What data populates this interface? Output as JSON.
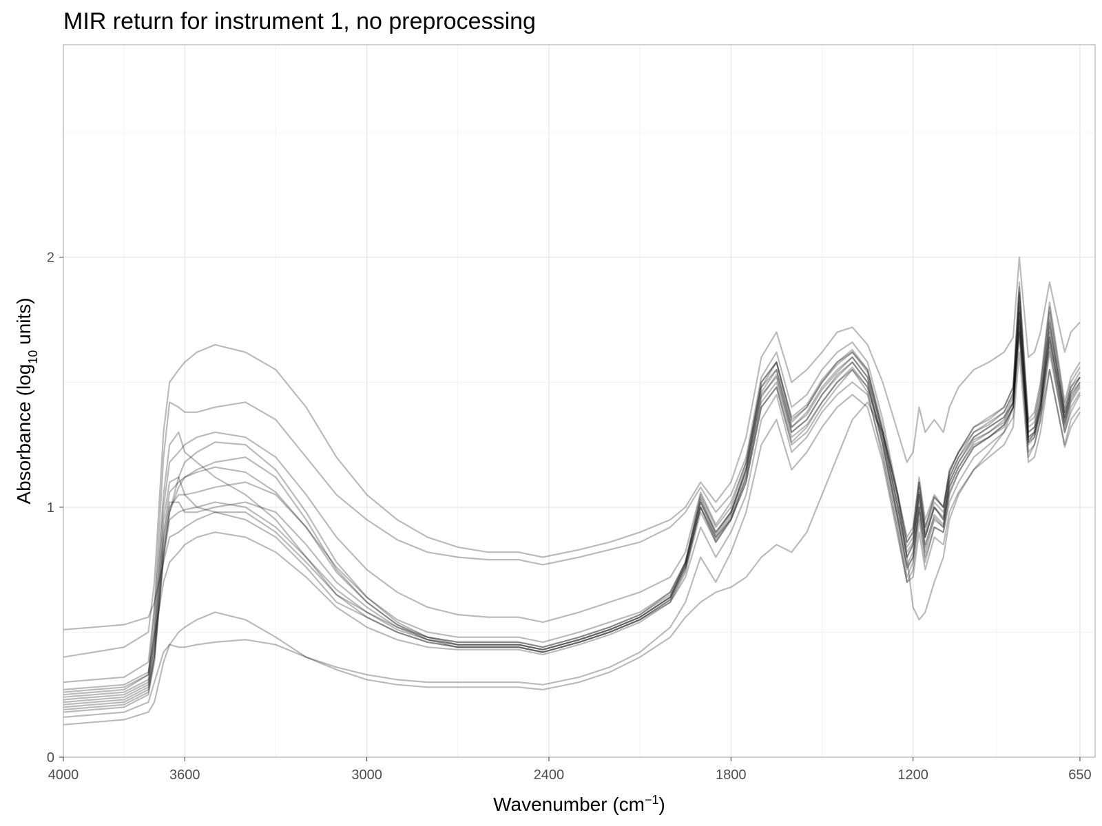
{
  "chart_data": {
    "type": "line",
    "title": "MIR return for instrument 1, no preprocessing",
    "xlabel": {
      "main": "Wavenumber (cm",
      "sup": "−1",
      "close": ")"
    },
    "ylabel": {
      "main": "Absorbance (log",
      "sub": "10",
      "close": " units)"
    },
    "x_reversed": true,
    "xlim": [
      4000,
      600
    ],
    "ylim": [
      0,
      2.85
    ],
    "x_ticks": [
      {
        "value": 4000,
        "label": "4000"
      },
      {
        "value": 3600,
        "label": "3600"
      },
      {
        "value": 3000,
        "label": "3000"
      },
      {
        "value": 2400,
        "label": "2400"
      },
      {
        "value": 1800,
        "label": "1800"
      },
      {
        "value": 1200,
        "label": "1200"
      },
      {
        "value": 650,
        "label": "650"
      }
    ],
    "y_ticks": [
      {
        "value": 0,
        "label": "0"
      },
      {
        "value": 1,
        "label": "1"
      },
      {
        "value": 2,
        "label": "2"
      }
    ],
    "grid": true,
    "line_color": "#000000",
    "line_opacity": 0.27,
    "x": [
      4000,
      3900,
      3800,
      3720,
      3700,
      3670,
      3650,
      3620,
      3600,
      3560,
      3500,
      3400,
      3300,
      3200,
      3100,
      3000,
      2900,
      2800,
      2700,
      2600,
      2500,
      2420,
      2300,
      2200,
      2100,
      2000,
      1950,
      1900,
      1850,
      1800,
      1750,
      1700,
      1650,
      1600,
      1550,
      1500,
      1450,
      1400,
      1350,
      1300,
      1250,
      1220,
      1200,
      1180,
      1160,
      1130,
      1100,
      1080,
      1050,
      1000,
      950,
      900,
      870,
      850,
      820,
      800,
      780,
      750,
      700,
      680,
      650
    ],
    "series": [
      {
        "values": [
          0.25,
          0.26,
          0.27,
          0.33,
          0.58,
          1.05,
          1.25,
          1.3,
          1.22,
          1.18,
          1.12,
          1.05,
          0.95,
          0.8,
          0.65,
          0.58,
          0.52,
          0.48,
          0.46,
          0.46,
          0.46,
          0.44,
          0.48,
          0.52,
          0.57,
          0.66,
          0.78,
          1.05,
          0.92,
          1.0,
          1.18,
          1.48,
          1.55,
          1.32,
          1.38,
          1.48,
          1.55,
          1.6,
          1.52,
          1.3,
          1.05,
          0.88,
          0.92,
          1.12,
          0.95,
          1.05,
          1.0,
          1.15,
          1.22,
          1.3,
          1.33,
          1.38,
          1.45,
          1.8,
          1.3,
          1.32,
          1.42,
          1.72,
          1.38,
          1.48,
          1.52
        ]
      },
      {
        "values": [
          0.24,
          0.25,
          0.26,
          0.31,
          0.5,
          0.95,
          1.1,
          1.12,
          1.05,
          1.0,
          0.98,
          0.95,
          0.88,
          0.76,
          0.62,
          0.56,
          0.5,
          0.46,
          0.44,
          0.44,
          0.44,
          0.42,
          0.46,
          0.5,
          0.55,
          0.63,
          0.75,
          1.0,
          0.88,
          0.95,
          1.12,
          1.42,
          1.5,
          1.28,
          1.33,
          1.42,
          1.5,
          1.56,
          1.48,
          1.28,
          0.98,
          0.8,
          0.85,
          1.05,
          0.88,
          1.0,
          0.95,
          1.1,
          1.18,
          1.27,
          1.3,
          1.35,
          1.42,
          1.75,
          1.28,
          1.3,
          1.4,
          1.68,
          1.35,
          1.45,
          1.5
        ]
      },
      {
        "values": [
          0.22,
          0.23,
          0.24,
          0.29,
          0.45,
          0.88,
          1.02,
          1.02,
          0.98,
          0.98,
          1.0,
          1.02,
          0.98,
          0.85,
          0.7,
          0.6,
          0.52,
          0.47,
          0.45,
          0.45,
          0.45,
          0.43,
          0.47,
          0.51,
          0.56,
          0.64,
          0.77,
          1.02,
          0.9,
          0.98,
          1.15,
          1.45,
          1.52,
          1.3,
          1.35,
          1.45,
          1.52,
          1.58,
          1.5,
          1.25,
          0.95,
          0.75,
          0.8,
          1.0,
          0.82,
          0.95,
          0.92,
          1.08,
          1.16,
          1.25,
          1.28,
          1.33,
          1.4,
          1.72,
          1.25,
          1.28,
          1.38,
          1.66,
          1.32,
          1.42,
          1.48
        ]
      },
      {
        "values": [
          0.2,
          0.21,
          0.22,
          0.27,
          0.4,
          0.82,
          0.98,
          1.08,
          1.12,
          1.15,
          1.18,
          1.2,
          1.12,
          0.95,
          0.75,
          0.62,
          0.53,
          0.47,
          0.44,
          0.44,
          0.44,
          0.42,
          0.46,
          0.5,
          0.55,
          0.63,
          0.76,
          1.0,
          0.86,
          0.95,
          1.1,
          1.4,
          1.48,
          1.25,
          1.3,
          1.4,
          1.48,
          1.55,
          1.46,
          1.2,
          0.9,
          0.7,
          0.75,
          0.95,
          0.78,
          0.92,
          0.9,
          1.05,
          1.14,
          1.24,
          1.28,
          1.33,
          1.4,
          1.78,
          1.26,
          1.3,
          1.4,
          1.7,
          1.34,
          1.44,
          1.5
        ]
      },
      {
        "values": [
          0.18,
          0.19,
          0.2,
          0.25,
          0.38,
          0.8,
          0.98,
          1.12,
          1.18,
          1.22,
          1.26,
          1.25,
          1.15,
          0.98,
          0.78,
          0.64,
          0.54,
          0.48,
          0.45,
          0.45,
          0.45,
          0.43,
          0.47,
          0.51,
          0.56,
          0.64,
          0.78,
          1.04,
          0.9,
          0.98,
          1.15,
          1.48,
          1.58,
          1.35,
          1.4,
          1.5,
          1.58,
          1.62,
          1.55,
          1.3,
          1.0,
          0.8,
          0.85,
          1.05,
          0.88,
          1.0,
          0.95,
          1.1,
          1.18,
          1.28,
          1.32,
          1.36,
          1.42,
          1.85,
          1.28,
          1.3,
          1.42,
          1.75,
          1.36,
          1.46,
          1.52
        ]
      },
      {
        "values": [
          0.3,
          0.31,
          0.32,
          0.38,
          0.6,
          1.2,
          1.42,
          1.4,
          1.38,
          1.38,
          1.4,
          1.42,
          1.35,
          1.2,
          1.05,
          0.95,
          0.87,
          0.82,
          0.8,
          0.79,
          0.79,
          0.77,
          0.8,
          0.83,
          0.86,
          0.92,
          0.98,
          1.08,
          0.98,
          1.05,
          1.2,
          1.52,
          1.62,
          1.4,
          1.45,
          1.55,
          1.62,
          1.66,
          1.58,
          1.35,
          1.05,
          0.86,
          0.9,
          1.1,
          0.92,
          1.04,
          1.0,
          1.14,
          1.22,
          1.32,
          1.35,
          1.4,
          1.48,
          1.9,
          1.35,
          1.38,
          1.5,
          1.82,
          1.42,
          1.52,
          1.58
        ]
      },
      {
        "values": [
          0.4,
          0.42,
          0.44,
          0.5,
          0.7,
          1.3,
          1.5,
          1.55,
          1.58,
          1.62,
          1.65,
          1.62,
          1.55,
          1.4,
          1.2,
          1.05,
          0.95,
          0.88,
          0.84,
          0.82,
          0.82,
          0.8,
          0.83,
          0.86,
          0.9,
          0.95,
          1.0,
          1.1,
          1.02,
          1.1,
          1.28,
          1.6,
          1.7,
          1.5,
          1.55,
          1.62,
          1.7,
          1.72,
          1.65,
          1.5,
          1.3,
          1.18,
          1.22,
          1.4,
          1.3,
          1.35,
          1.3,
          1.4,
          1.48,
          1.55,
          1.58,
          1.62,
          1.68,
          2.0,
          1.6,
          1.62,
          1.7,
          1.9,
          1.62,
          1.7,
          1.74
        ]
      },
      {
        "values": [
          0.51,
          0.52,
          0.53,
          0.56,
          0.62,
          0.78,
          0.88,
          0.9,
          0.92,
          0.95,
          0.98,
          0.98,
          0.9,
          0.78,
          0.65,
          0.56,
          0.5,
          0.46,
          0.44,
          0.44,
          0.44,
          0.42,
          0.46,
          0.5,
          0.55,
          0.62,
          0.72,
          0.92,
          0.8,
          0.9,
          1.05,
          1.35,
          1.45,
          1.22,
          1.28,
          1.38,
          1.45,
          1.5,
          1.45,
          1.22,
          0.92,
          0.72,
          0.78,
          0.98,
          0.8,
          0.92,
          0.9,
          1.02,
          1.1,
          1.2,
          1.25,
          1.3,
          1.36,
          1.7,
          1.22,
          1.25,
          1.35,
          1.62,
          1.3,
          1.38,
          1.45
        ]
      },
      {
        "values": [
          0.13,
          0.14,
          0.15,
          0.18,
          0.22,
          0.38,
          0.45,
          0.5,
          0.52,
          0.55,
          0.58,
          0.55,
          0.48,
          0.4,
          0.35,
          0.31,
          0.29,
          0.28,
          0.28,
          0.28,
          0.28,
          0.27,
          0.3,
          0.34,
          0.4,
          0.48,
          0.56,
          0.62,
          0.66,
          0.68,
          0.72,
          0.8,
          0.85,
          0.82,
          0.9,
          1.05,
          1.2,
          1.35,
          1.42,
          1.3,
          1.05,
          0.8,
          0.6,
          0.55,
          0.58,
          0.7,
          0.8,
          0.95,
          1.05,
          1.15,
          1.22,
          1.3,
          1.4,
          1.7,
          1.2,
          1.25,
          1.35,
          1.55,
          1.25,
          1.35,
          1.4
        ]
      },
      {
        "values": [
          0.16,
          0.17,
          0.18,
          0.22,
          0.3,
          0.42,
          0.45,
          0.44,
          0.44,
          0.45,
          0.46,
          0.47,
          0.45,
          0.4,
          0.36,
          0.33,
          0.31,
          0.3,
          0.3,
          0.3,
          0.3,
          0.29,
          0.32,
          0.36,
          0.42,
          0.52,
          0.62,
          0.8,
          0.7,
          0.82,
          0.98,
          1.25,
          1.35,
          1.15,
          1.22,
          1.32,
          1.4,
          1.45,
          1.4,
          1.18,
          0.88,
          0.7,
          0.72,
          0.9,
          0.75,
          0.88,
          0.85,
          0.98,
          1.06,
          1.15,
          1.2,
          1.25,
          1.32,
          1.62,
          1.18,
          1.2,
          1.3,
          1.55,
          1.24,
          1.32,
          1.38
        ]
      },
      {
        "values": [
          0.27,
          0.28,
          0.29,
          0.34,
          0.48,
          0.7,
          0.78,
          0.82,
          0.85,
          0.88,
          0.9,
          0.88,
          0.82,
          0.72,
          0.6,
          0.52,
          0.47,
          0.44,
          0.43,
          0.43,
          0.43,
          0.41,
          0.45,
          0.49,
          0.54,
          0.62,
          0.74,
          0.98,
          0.86,
          0.95,
          1.1,
          1.4,
          1.48,
          1.26,
          1.32,
          1.42,
          1.5,
          1.55,
          1.48,
          1.25,
          0.95,
          0.76,
          0.8,
          1.0,
          0.84,
          0.96,
          0.92,
          1.06,
          1.14,
          1.24,
          1.28,
          1.32,
          1.4,
          1.74,
          1.26,
          1.28,
          1.38,
          1.64,
          1.3,
          1.4,
          1.46
        ]
      },
      {
        "values": [
          0.21,
          0.22,
          0.23,
          0.28,
          0.42,
          0.85,
          1.0,
          1.05,
          1.05,
          1.06,
          1.08,
          1.1,
          1.05,
          0.92,
          0.76,
          0.64,
          0.55,
          0.5,
          0.48,
          0.48,
          0.48,
          0.46,
          0.5,
          0.54,
          0.58,
          0.66,
          0.78,
          1.02,
          0.88,
          0.97,
          1.14,
          1.46,
          1.55,
          1.32,
          1.37,
          1.47,
          1.54,
          1.6,
          1.52,
          1.28,
          1.0,
          0.82,
          0.86,
          1.06,
          0.88,
          1.0,
          0.96,
          1.12,
          1.2,
          1.28,
          1.32,
          1.36,
          1.44,
          1.82,
          1.3,
          1.32,
          1.44,
          1.74,
          1.36,
          1.46,
          1.52
        ]
      },
      {
        "values": [
          0.19,
          0.2,
          0.21,
          0.26,
          0.4,
          0.8,
          0.95,
          0.98,
          0.99,
          1.0,
          1.02,
          1.0,
          0.92,
          0.8,
          0.67,
          0.58,
          0.51,
          0.47,
          0.45,
          0.45,
          0.45,
          0.43,
          0.47,
          0.51,
          0.56,
          0.64,
          0.76,
          1.0,
          0.87,
          0.96,
          1.12,
          1.44,
          1.53,
          1.3,
          1.35,
          1.45,
          1.53,
          1.58,
          1.5,
          1.26,
          0.96,
          0.77,
          0.82,
          1.02,
          0.85,
          0.97,
          0.93,
          1.08,
          1.16,
          1.26,
          1.3,
          1.34,
          1.42,
          1.78,
          1.27,
          1.29,
          1.4,
          1.68,
          1.33,
          1.43,
          1.49
        ]
      },
      {
        "values": [
          0.23,
          0.24,
          0.25,
          0.3,
          0.46,
          0.9,
          1.06,
          1.1,
          1.12,
          1.14,
          1.16,
          1.14,
          1.06,
          0.92,
          0.74,
          0.62,
          0.53,
          0.48,
          0.46,
          0.46,
          0.46,
          0.44,
          0.48,
          0.52,
          0.57,
          0.65,
          0.77,
          1.03,
          0.89,
          0.98,
          1.16,
          1.5,
          1.58,
          1.34,
          1.4,
          1.5,
          1.57,
          1.62,
          1.54,
          1.3,
          1.02,
          0.84,
          0.88,
          1.08,
          0.9,
          1.02,
          0.98,
          1.12,
          1.2,
          1.3,
          1.34,
          1.38,
          1.46,
          1.86,
          1.32,
          1.34,
          1.46,
          1.78,
          1.38,
          1.48,
          1.54
        ]
      },
      {
        "values": [
          0.26,
          0.27,
          0.28,
          0.33,
          0.52,
          1.0,
          1.18,
          1.22,
          1.25,
          1.28,
          1.3,
          1.28,
          1.2,
          1.05,
          0.88,
          0.75,
          0.66,
          0.6,
          0.57,
          0.56,
          0.56,
          0.54,
          0.58,
          0.62,
          0.66,
          0.72,
          0.82,
          1.06,
          0.93,
          1.02,
          1.18,
          1.5,
          1.58,
          1.36,
          1.41,
          1.51,
          1.58,
          1.63,
          1.55,
          1.32,
          1.04,
          0.86,
          0.9,
          1.1,
          0.92,
          1.04,
          1.0,
          1.14,
          1.22,
          1.32,
          1.36,
          1.4,
          1.48,
          1.88,
          1.34,
          1.36,
          1.48,
          1.8,
          1.4,
          1.5,
          1.56
        ]
      }
    ]
  }
}
